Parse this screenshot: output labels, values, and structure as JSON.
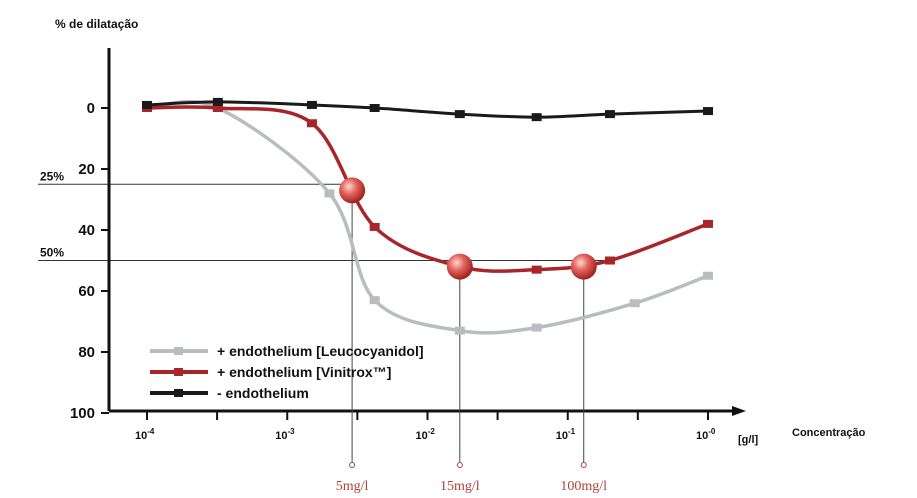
{
  "chart_data": {
    "type": "line",
    "ylabel": "% de dilatação",
    "xlabel": "Concentração",
    "x_unit": "[g/l]",
    "x_scale": "log",
    "xlim": [
      0.0001,
      1
    ],
    "ylim": [
      0,
      100
    ],
    "y_inverted": true,
    "y_ticks": [
      "0",
      "20",
      "40",
      "60",
      "80",
      "100"
    ],
    "x_ticks": [
      {
        "value": 0.0001,
        "base": "10",
        "exp": "-4"
      },
      {
        "value": 0.001,
        "base": "10",
        "exp": "-3"
      },
      {
        "value": 0.01,
        "base": "10",
        "exp": "-2"
      },
      {
        "value": 0.1,
        "base": "10",
        "exp": "-1"
      },
      {
        "value": 1,
        "base": "10",
        "exp": "-0"
      }
    ],
    "legend_position": "bottom-left",
    "series": [
      {
        "name": "+ endothelium [Leucocyanidol]",
        "color": "#b9bdbf",
        "x": [
          0.0001,
          0.00032,
          0.002,
          0.0042,
          0.017,
          0.06,
          0.3,
          1
        ],
        "y": [
          0,
          0,
          28,
          63,
          73,
          72,
          64,
          55
        ]
      },
      {
        "name": "+ endothelium [Vinitrox™]",
        "color": "#a8262a",
        "x": [
          0.0001,
          0.00032,
          0.0015,
          0.0042,
          0.017,
          0.06,
          0.2,
          1
        ],
        "y": [
          0,
          0,
          5,
          39,
          52,
          53,
          50,
          38
        ]
      },
      {
        "name": "- endothelium",
        "color": "#1a1a1a",
        "x": [
          0.0001,
          0.00032,
          0.0015,
          0.0042,
          0.017,
          0.06,
          0.2,
          1
        ],
        "y": [
          -1,
          -2,
          -1,
          0,
          2,
          3,
          2,
          1
        ]
      }
    ],
    "reference_lines": [
      {
        "label": "25%",
        "y": 25,
        "x_end": 0.0029
      },
      {
        "label": "50%",
        "y": 50,
        "x_end": 0.18
      }
    ],
    "annotations": [
      {
        "label": "5mg/l",
        "x": 0.0029,
        "y": 27
      },
      {
        "label": "15mg/l",
        "x": 0.017,
        "y": 52
      },
      {
        "label": "100mg/l",
        "x": 0.13,
        "y": 52
      }
    ]
  }
}
